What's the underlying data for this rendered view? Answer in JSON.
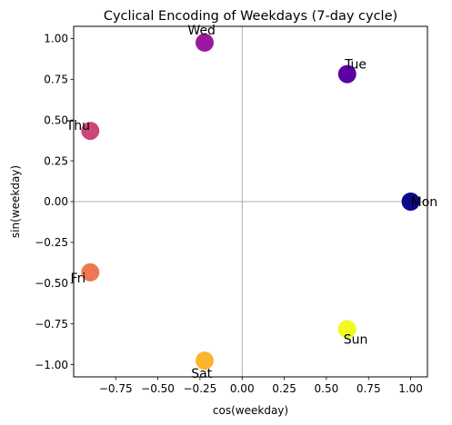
{
  "chart_data": {
    "type": "scatter",
    "title": "Cyclical Encoding of Weekdays (7-day cycle)",
    "xlabel": "cos(weekday)",
    "ylabel": "sin(weekday)",
    "xlim": [
      -0.9995,
      1.0995
    ],
    "ylim": [
      -1.0747,
      1.0747
    ],
    "xticks": [
      -0.75,
      -0.5,
      -0.25,
      0.0,
      0.25,
      0.5,
      0.75,
      1.0
    ],
    "yticks": [
      -1.0,
      -0.75,
      -0.5,
      -0.25,
      0.0,
      0.25,
      0.5,
      0.75,
      1.0
    ],
    "xtick_labels": [
      "−0.75",
      "−0.50",
      "−0.25",
      "0.00",
      "0.25",
      "0.50",
      "0.75",
      "1.00"
    ],
    "ytick_labels": [
      "−1.00",
      "−0.75",
      "−0.50",
      "−0.25",
      "0.00",
      "0.25",
      "0.50",
      "0.75",
      "1.00"
    ],
    "colormap": "plasma",
    "reference_lines": {
      "x": 0,
      "y": 0,
      "color": "#999999"
    },
    "points": [
      {
        "label": "Mon",
        "x": 1.0,
        "y": 0.0,
        "color": "#0d0887"
      },
      {
        "label": "Tue",
        "x": 0.6235,
        "y": 0.7818,
        "color": "#5c01a6"
      },
      {
        "label": "Wed",
        "x": -0.2225,
        "y": 0.9749,
        "color": "#9c179e"
      },
      {
        "label": "Thu",
        "x": -0.901,
        "y": 0.4339,
        "color": "#cc4778"
      },
      {
        "label": "Fri",
        "x": -0.901,
        "y": -0.4339,
        "color": "#ed7953"
      },
      {
        "label": "Sat",
        "x": -0.2225,
        "y": -0.9749,
        "color": "#fdb42f"
      },
      {
        "label": "Sun",
        "x": 0.6235,
        "y": -0.7818,
        "color": "#f0f921"
      }
    ]
  }
}
